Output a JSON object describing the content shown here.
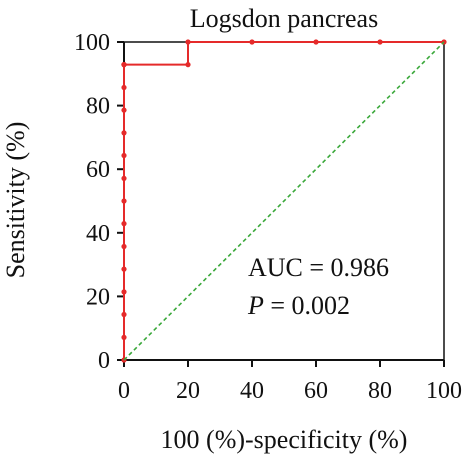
{
  "chart_data": {
    "type": "line",
    "title": "Logsdon pancreas",
    "xlabel": "100 (%)-specificity (%)",
    "ylabel": "Sensitivity (%)",
    "xlim": [
      0,
      100
    ],
    "ylim": [
      0,
      100
    ],
    "xticks": [
      "0",
      "20",
      "40",
      "60",
      "80",
      "100"
    ],
    "yticks": [
      "0",
      "20",
      "40",
      "60",
      "80",
      "100"
    ],
    "series": [
      {
        "color": "#e52a2a",
        "line_style": "step",
        "x": [
          0,
          0,
          0,
          0,
          0,
          0,
          0,
          0,
          0,
          0,
          0,
          0,
          0,
          0,
          0,
          0,
          20,
          20,
          40,
          60,
          80,
          100
        ],
        "y": [
          0,
          7.1,
          14.3,
          21.4,
          28.6,
          35.7,
          42.9,
          50.0,
          57.1,
          64.3,
          71.4,
          78.6,
          85.7,
          92.9,
          92.9,
          92.9,
          92.9,
          100,
          100,
          100,
          100,
          100
        ]
      },
      {
        "color": "#3aa83a",
        "line_style": "dashed",
        "x": [
          0,
          100
        ],
        "y": [
          0,
          100
        ]
      }
    ],
    "annotations": [
      {
        "text": "AUC = 0.986"
      },
      {
        "prefix": "P",
        "text": " = 0.002"
      }
    ],
    "grid": false,
    "legend": "none"
  }
}
